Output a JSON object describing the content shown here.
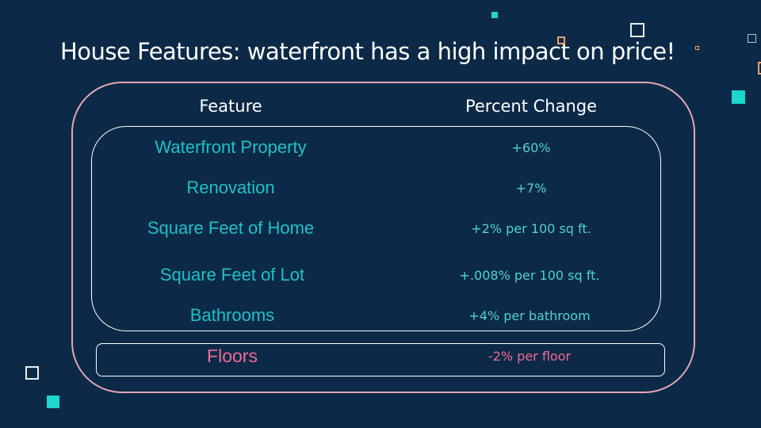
{
  "slide": {
    "title": "House Features: waterfront has a high impact on price!"
  },
  "table": {
    "headers": {
      "feature": "Feature",
      "percent_change": "Percent Change"
    },
    "rows": [
      {
        "feature": "Waterfront Property",
        "change": "+60%"
      },
      {
        "feature": "Renovation",
        "change": "+7%"
      },
      {
        "feature": "Square Feet of Home",
        "change": "+2% per 100 sq ft."
      },
      {
        "feature": "Square Feet of Lot",
        "change": "+.008% per 100 sq ft."
      },
      {
        "feature": "Bathrooms",
        "change": "+4% per bathroom"
      }
    ],
    "negative_row": {
      "feature": "Floors",
      "change": "-2% per floor"
    }
  },
  "colors": {
    "background": "#0c2a47",
    "accent_teal": "#20c0c8",
    "accent_pink": "#f06a95",
    "outer_frame": "#e6a6b4"
  }
}
